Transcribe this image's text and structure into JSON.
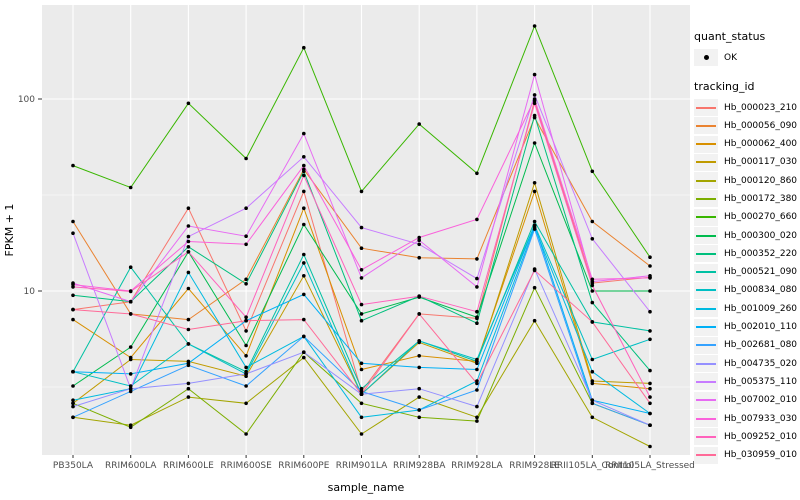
{
  "figure": {
    "x_axis_title": "sample_name",
    "y_axis_title": "FPKM + 1"
  },
  "legend": {
    "quant_status": {
      "title": "quant_status",
      "items": [
        {
          "label": "OK"
        }
      ]
    },
    "tracking": {
      "title": "tracking_id"
    }
  },
  "colors": {
    "panel_bg": "#EBEBEB",
    "grid": "#FFFFFF",
    "point": "#000000",
    "tick_text": "#4D4D4D",
    "tick_mark": "#333333",
    "legend_key_bg": "#F2F2F2"
  },
  "chart_data": {
    "type": "line",
    "title": "",
    "x_label": "sample_name",
    "y_label": "FPKM + 1",
    "y_scale": "log10",
    "ylim": [
      1.4,
      305
    ],
    "y_major_ticks": [
      10,
      100
    ],
    "y_minor_ticks": [
      3.162,
      31.62
    ],
    "grid": true,
    "legend_position": "right",
    "quant_status": "OK",
    "point_marker": "black dot on every value",
    "categories": [
      "PB350LA",
      "RRIM600LA",
      "RRIM600LE",
      "RRIM600SE",
      "RRIM600PE",
      "RRIM901LA",
      "RRIM928BA",
      "RRIM928LA",
      "RRIM928LE",
      "RRII105LA_Control",
      "RRII105LA_Stressed"
    ],
    "series": [
      {
        "name": "Hb_000023_210",
        "color": "#F8766D",
        "values": [
          8.0,
          8.8,
          27,
          6.2,
          33,
          3.0,
          7.6,
          7.2,
          98,
          11.0,
          11.8
        ]
      },
      {
        "name": "Hb_000056_090",
        "color": "#EA8331",
        "values": [
          23,
          7.6,
          7.1,
          11.5,
          43,
          16.7,
          14.9,
          14.7,
          80,
          23,
          13.5
        ]
      },
      {
        "name": "Hb_000062_400",
        "color": "#D89000",
        "values": [
          7.1,
          4.5,
          10.3,
          4.6,
          27,
          3.9,
          4.6,
          4.3,
          33,
          3.3,
          3.1
        ]
      },
      {
        "name": "Hb_000117_030",
        "color": "#C09B00",
        "values": [
          2.6,
          4.4,
          4.3,
          3.6,
          12,
          2.9,
          5.4,
          4.2,
          36.6,
          3.4,
          3.3
        ]
      },
      {
        "name": "Hb_000120_860",
        "color": "#A3A500",
        "values": [
          2.2,
          2.0,
          2.8,
          2.6,
          4.5,
          1.8,
          2.8,
          2.2,
          7.0,
          2.2,
          1.55
        ]
      },
      {
        "name": "Hb_000172_380",
        "color": "#7CAE00",
        "values": [
          2.6,
          1.95,
          3.1,
          1.8,
          4.8,
          2.6,
          2.2,
          2.1,
          10.4,
          2.6,
          2.0
        ]
      },
      {
        "name": "Hb_000270_660",
        "color": "#39B600",
        "values": [
          45,
          34.6,
          95,
          49,
          185,
          33,
          74,
          41,
          240,
          42,
          15
        ]
      },
      {
        "name": "Hb_000300_020",
        "color": "#00BB4E",
        "values": [
          3.2,
          5.1,
          16,
          5.2,
          22.2,
          7.6,
          9.3,
          7.3,
          59,
          10,
          10
        ]
      },
      {
        "name": "Hb_000352_220",
        "color": "#00BF7D",
        "values": [
          9.5,
          8.8,
          17,
          10.9,
          42,
          7.0,
          9.4,
          6.8,
          82,
          8.7,
          3.85
        ]
      },
      {
        "name": "Hb_000521_090",
        "color": "#00C1A3",
        "values": [
          3.8,
          13.3,
          5.3,
          3.8,
          15.5,
          3.1,
          5.5,
          4.3,
          23,
          6.9,
          6.2
        ]
      },
      {
        "name": "Hb_000834_080",
        "color": "#00BFC4",
        "values": [
          3.8,
          3.2,
          5.3,
          3.7,
          14,
          2.9,
          5.5,
          4.4,
          22,
          4.4,
          5.6
        ]
      },
      {
        "name": "Hb_001009_260",
        "color": "#00BAE0",
        "values": [
          2.7,
          3.1,
          12.5,
          4.0,
          5.8,
          2.2,
          2.4,
          3.4,
          21.5,
          3.8,
          2.3
        ]
      },
      {
        "name": "Hb_002010_110",
        "color": "#00B0F6",
        "values": [
          3.8,
          3.7,
          4.2,
          7.0,
          9.6,
          4.2,
          4.0,
          3.9,
          22,
          2.7,
          2.3
        ]
      },
      {
        "name": "Hb_002681_080",
        "color": "#35A2FF",
        "values": [
          2.2,
          3.0,
          4.1,
          3.2,
          5.8,
          3.0,
          2.4,
          3.05,
          21,
          2.6,
          2.0
        ]
      },
      {
        "name": "Hb_004735_020",
        "color": "#9590FF",
        "values": [
          2.5,
          3.1,
          3.3,
          3.7,
          4.8,
          2.9,
          3.1,
          2.5,
          13,
          2.7,
          2.0
        ]
      },
      {
        "name": "Hb_005375_110",
        "color": "#C77CFF",
        "values": [
          20,
          3.1,
          19.2,
          27,
          50,
          21.4,
          17.5,
          11.6,
          105,
          18.7,
          7.8
        ]
      },
      {
        "name": "Hb_007002_010",
        "color": "#E76BF3",
        "values": [
          11,
          8.8,
          21.8,
          19.3,
          66,
          11.7,
          18.4,
          10.5,
          134,
          11.2,
          12
        ]
      },
      {
        "name": "Hb_007933_030",
        "color": "#FA62DB",
        "values": [
          10.8,
          10,
          18.1,
          17.5,
          45,
          12.9,
          19,
          23.6,
          100,
          11.5,
          11.7
        ]
      },
      {
        "name": "Hb_009252_010",
        "color": "#FF62BC",
        "values": [
          10.5,
          9.95,
          16,
          7.3,
          40,
          8.5,
          9.4,
          7.8,
          95,
          10.7,
          2.8
        ]
      },
      {
        "name": "Hb_030959_010",
        "color": "#FF6A98",
        "values": [
          8.0,
          7.6,
          6.3,
          7.0,
          7.1,
          2.9,
          7.6,
          3.3,
          12.8,
          6.9,
          2.6
        ]
      }
    ]
  }
}
